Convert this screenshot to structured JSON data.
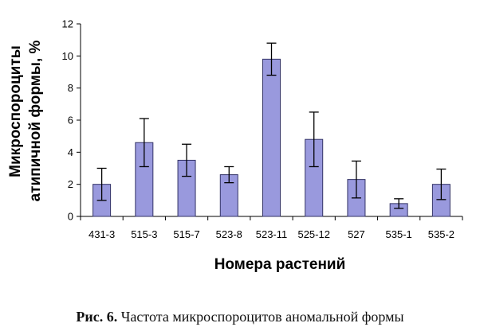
{
  "chart_data": {
    "type": "bar",
    "title": "",
    "xlabel": "Номера растений",
    "ylabel_lines": [
      "Микроспороциты",
      "атипичной формы, %"
    ],
    "categories": [
      "431-3",
      "515-3",
      "515-7",
      "523-8",
      "523-11",
      "525-12",
      "527",
      "535-1",
      "535-2"
    ],
    "values": [
      2.0,
      4.6,
      3.5,
      2.6,
      9.8,
      4.8,
      2.3,
      0.8,
      2.0
    ],
    "error": [
      1.0,
      1.5,
      1.0,
      0.5,
      1.0,
      1.7,
      1.15,
      0.3,
      0.95
    ],
    "ylim": [
      0,
      12
    ],
    "yticks": [
      0,
      2,
      4,
      6,
      8,
      10,
      12
    ],
    "grid": false,
    "legend": "none",
    "bar_color": "#9999dd",
    "bar_stroke": "#333366"
  },
  "caption": {
    "label": "Рис. 6.",
    "text": "Частота микроспороцитов аномальной формы"
  }
}
